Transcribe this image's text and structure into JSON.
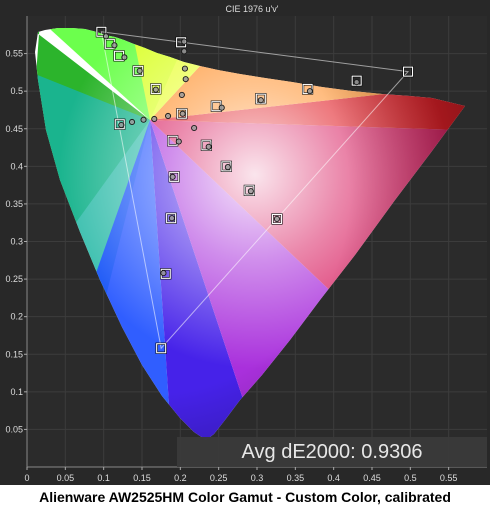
{
  "chart_data": {
    "type": "scatter",
    "title": "CIE 1976 u'v'",
    "caption": "Alienware AW2525HM Color Gamut - Custom Color, calibrated",
    "annotation": "Avg dE2000: 0.9306",
    "xlim": [
      0,
      0.6
    ],
    "ylim": [
      0,
      0.6
    ],
    "xticks": [
      0,
      0.05,
      0.1,
      0.15,
      0.2,
      0.25,
      0.3,
      0.35,
      0.4,
      0.45,
      0.5,
      0.55
    ],
    "xtick_labels": [
      "0",
      "0.05",
      "0.1",
      "0.15",
      "0.2",
      "0.25",
      "0.3",
      "0.35",
      "0.4",
      "0.45",
      "0.5",
      "0.55"
    ],
    "yticks": [
      0.05,
      0.1,
      0.15,
      0.2,
      0.25,
      0.3,
      0.35,
      0.4,
      0.45,
      0.5,
      0.55
    ],
    "ytick_labels": [
      "0.05",
      "0.1",
      "0.15",
      "0.2",
      "0.25",
      "0.3",
      "0.35",
      "0.4",
      "0.45",
      "0.5",
      "0.55"
    ],
    "grid": true,
    "gamut_triangle": [
      [
        0.097,
        0.579
      ],
      [
        0.497,
        0.526
      ],
      [
        0.175,
        0.158
      ]
    ],
    "series": [
      {
        "marker": "square",
        "points": [
          [
            0.097,
            0.579
          ],
          [
            0.108,
            0.563
          ],
          [
            0.12,
            0.547
          ],
          [
            0.145,
            0.527
          ],
          [
            0.168,
            0.503
          ],
          [
            0.201,
            0.565
          ],
          [
            0.202,
            0.47
          ],
          [
            0.121,
            0.456
          ],
          [
            0.247,
            0.48
          ],
          [
            0.305,
            0.49
          ],
          [
            0.366,
            0.503
          ],
          [
            0.43,
            0.514
          ],
          [
            0.497,
            0.526
          ],
          [
            0.19,
            0.434
          ],
          [
            0.234,
            0.428
          ],
          [
            0.26,
            0.4
          ],
          [
            0.192,
            0.386
          ],
          [
            0.29,
            0.368
          ],
          [
            0.188,
            0.331
          ],
          [
            0.326,
            0.33
          ],
          [
            0.181,
            0.257
          ],
          [
            0.175,
            0.158
          ]
        ]
      },
      {
        "marker": "circle",
        "points": [
          [
            0.103,
            0.573
          ],
          [
            0.114,
            0.561
          ],
          [
            0.127,
            0.545
          ],
          [
            0.147,
            0.527
          ],
          [
            0.168,
            0.502
          ],
          [
            0.205,
            0.566
          ],
          [
            0.205,
            0.553
          ],
          [
            0.206,
            0.53
          ],
          [
            0.207,
            0.516
          ],
          [
            0.202,
            0.495
          ],
          [
            0.203,
            0.47
          ],
          [
            0.123,
            0.455
          ],
          [
            0.137,
            0.459
          ],
          [
            0.152,
            0.462
          ],
          [
            0.166,
            0.463
          ],
          [
            0.184,
            0.467
          ],
          [
            0.218,
            0.451
          ],
          [
            0.254,
            0.478
          ],
          [
            0.305,
            0.488
          ],
          [
            0.369,
            0.5
          ],
          [
            0.43,
            0.512
          ],
          [
            0.198,
            0.433
          ],
          [
            0.237,
            0.426
          ],
          [
            0.262,
            0.399
          ],
          [
            0.19,
            0.386
          ],
          [
            0.292,
            0.367
          ],
          [
            0.189,
            0.331
          ],
          [
            0.326,
            0.33
          ],
          [
            0.178,
            0.258
          ]
        ]
      }
    ]
  }
}
